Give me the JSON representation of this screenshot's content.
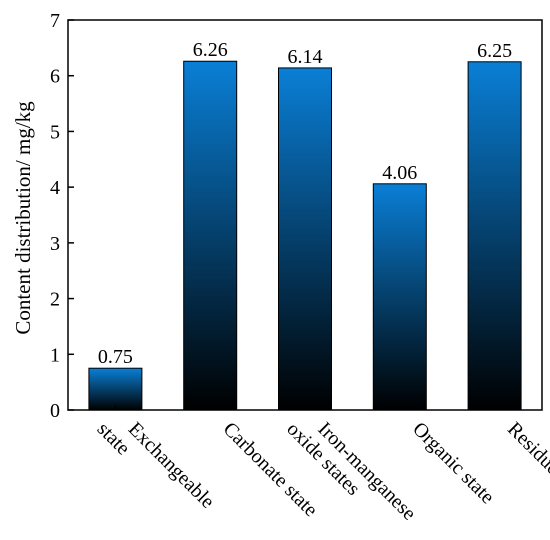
{
  "chart_data": {
    "type": "bar",
    "title": "",
    "xlabel": "",
    "ylabel": "Content distribution/ mg/kg",
    "ylim": [
      0,
      7
    ],
    "yticks": [
      0,
      1,
      2,
      3,
      4,
      5,
      6,
      7
    ],
    "categories": [
      [
        "Exchangeable",
        "state"
      ],
      [
        "Carbonate state"
      ],
      [
        "Iron-manganese",
        "oxide states"
      ],
      [
        "Organic state"
      ],
      [
        "Residue state"
      ]
    ],
    "values": [
      0.75,
      6.26,
      6.14,
      4.06,
      6.25
    ],
    "value_labels": [
      "0.75",
      "6.26",
      "6.14",
      "4.06",
      "6.25"
    ],
    "grid": false,
    "legend": "none",
    "bar_gradient": {
      "top": "#0a7fd6",
      "bottom": "#000000"
    }
  }
}
